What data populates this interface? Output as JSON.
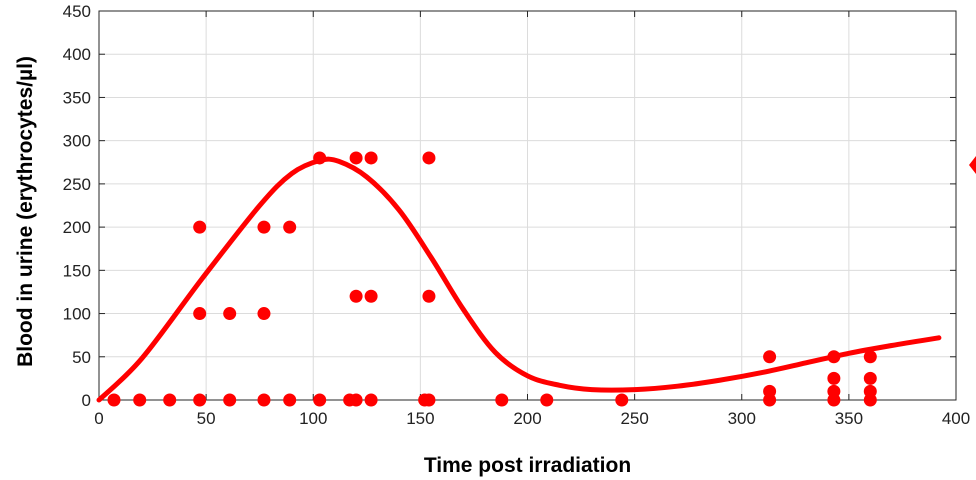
{
  "chart_data": {
    "type": "scatter",
    "title": "",
    "xlabel": "Time post irradiation",
    "ylabel": "Blood in urine (erythrocytes/µl)",
    "xlim": [
      0,
      400
    ],
    "ylim": [
      0,
      450
    ],
    "xticks": [
      0,
      50,
      100,
      150,
      200,
      250,
      300,
      350,
      400
    ],
    "yticks": [
      0,
      50,
      100,
      150,
      200,
      250,
      300,
      350,
      400,
      450
    ],
    "grid": true,
    "legend": "none",
    "colors": {
      "series": "#ff0000",
      "grid": "#dcdcdc",
      "axis": "#262626"
    },
    "series": [
      {
        "kind": "points",
        "points": [
          [
            7,
            0
          ],
          [
            19,
            0
          ],
          [
            33,
            0
          ],
          [
            47,
            0
          ],
          [
            47,
            100
          ],
          [
            47,
            200
          ],
          [
            61,
            0
          ],
          [
            61,
            100
          ],
          [
            77,
            0
          ],
          [
            77,
            100
          ],
          [
            77,
            200
          ],
          [
            89,
            0
          ],
          [
            89,
            200
          ],
          [
            103,
            0
          ],
          [
            103,
            280
          ],
          [
            117,
            0
          ],
          [
            120,
            0
          ],
          [
            120,
            120
          ],
          [
            120,
            280
          ],
          [
            127,
            0
          ],
          [
            127,
            120
          ],
          [
            127,
            280
          ],
          [
            152,
            0
          ],
          [
            154,
            0
          ],
          [
            154,
            120
          ],
          [
            154,
            280
          ],
          [
            188,
            0
          ],
          [
            209,
            0
          ],
          [
            244,
            0
          ],
          [
            313,
            0
          ],
          [
            313,
            10
          ],
          [
            313,
            50
          ],
          [
            343,
            0
          ],
          [
            343,
            10
          ],
          [
            343,
            25
          ],
          [
            343,
            50
          ],
          [
            360,
            0
          ],
          [
            360,
            10
          ],
          [
            360,
            25
          ],
          [
            360,
            50
          ]
        ]
      },
      {
        "kind": "curve",
        "points": [
          [
            0,
            0
          ],
          [
            20,
            48
          ],
          [
            48,
            140
          ],
          [
            75,
            225
          ],
          [
            90,
            262
          ],
          [
            103,
            277
          ],
          [
            112,
            276
          ],
          [
            125,
            258
          ],
          [
            140,
            220
          ],
          [
            155,
            165
          ],
          [
            170,
            105
          ],
          [
            185,
            55
          ],
          [
            200,
            28
          ],
          [
            215,
            17
          ],
          [
            230,
            12
          ],
          [
            250,
            12
          ],
          [
            270,
            16
          ],
          [
            290,
            23
          ],
          [
            310,
            32
          ],
          [
            330,
            43
          ],
          [
            350,
            54
          ],
          [
            370,
            63
          ],
          [
            392,
            72
          ]
        ]
      }
    ]
  }
}
